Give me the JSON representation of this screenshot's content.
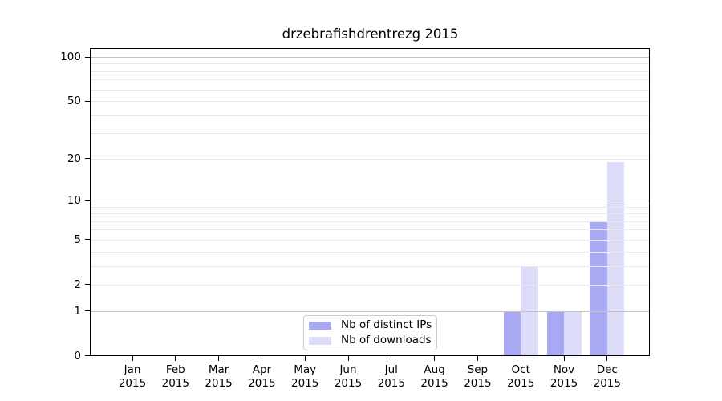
{
  "figure_title": "drzebrafishdrentrezg 2015",
  "chart_data": {
    "type": "bar",
    "title": "drzebrafishdrentrezg 2015",
    "categories": [
      "Jan",
      "Feb",
      "Mar",
      "Apr",
      "May",
      "Jun",
      "Jul",
      "Aug",
      "Sep",
      "Oct",
      "Nov",
      "Dec"
    ],
    "year_label": "2015",
    "series": [
      {
        "name": "Nb of distinct IPs",
        "color": "#a9a9f3",
        "values": [
          0,
          0,
          0,
          0,
          0,
          0,
          0,
          0,
          0,
          1,
          1,
          7
        ]
      },
      {
        "name": "Nb of downloads",
        "color": "#dcdcf8",
        "values": [
          0,
          0,
          0,
          0,
          0,
          0,
          0,
          0,
          0,
          3,
          1,
          19
        ]
      }
    ],
    "xlabel": "",
    "ylabel": "",
    "y_scale": "log1p",
    "ylim": [
      0,
      113
    ],
    "y_ticks": [
      0,
      1,
      2,
      5,
      10,
      20,
      50,
      100
    ],
    "y_major_gridlines": [
      1,
      10,
      100
    ],
    "y_minor_gridlines": [
      2,
      3,
      4,
      5,
      6,
      7,
      8,
      9,
      20,
      30,
      40,
      50,
      60,
      70,
      80,
      90
    ],
    "grid": true,
    "legend_position": "lower center inside plot"
  },
  "colors": {
    "background": "#ffffff",
    "axis": "#000000",
    "grid_major": "#c4c4c4",
    "grid_minor": "#e9e9e9",
    "legend_border": "#cccccc",
    "bar_distinct_ips": "#a9a9f3",
    "bar_downloads": "#dcdcf8"
  }
}
